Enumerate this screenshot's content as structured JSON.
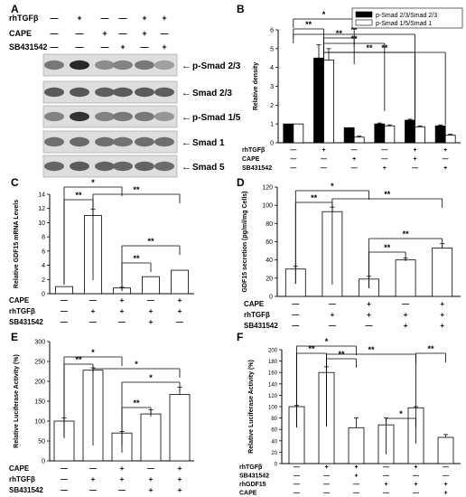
{
  "figure": {
    "panel_letters": [
      "A",
      "B",
      "C",
      "D",
      "E",
      "F"
    ]
  },
  "blot": {
    "conditions": [
      {
        "name": "rhTGFβ",
        "marks": [
          "—",
          "+",
          "—",
          "—",
          "+",
          "+"
        ]
      },
      {
        "name": "CAPE",
        "marks": [
          "—",
          "—",
          "+",
          "—",
          "+",
          "—"
        ]
      },
      {
        "name": "SB431542",
        "marks": [
          "—",
          "—",
          "—",
          "+",
          "—",
          "+"
        ]
      }
    ],
    "bands": [
      "p-Smad 2/3",
      "Smad 2/3",
      "p-Smad 1/5",
      "Smad 1",
      "Smad 5"
    ],
    "arrow": "←",
    "intensity": [
      [
        0.55,
        0.95,
        0.45,
        0.5,
        0.55,
        0.35
      ],
      [
        0.7,
        0.72,
        0.68,
        0.7,
        0.7,
        0.68
      ],
      [
        0.5,
        0.9,
        0.5,
        0.55,
        0.55,
        0.4
      ],
      [
        0.6,
        0.62,
        0.6,
        0.58,
        0.6,
        0.6
      ],
      [
        0.65,
        0.7,
        0.66,
        0.64,
        0.66,
        0.62
      ]
    ]
  },
  "chart_data": [
    {
      "panel": "B",
      "type": "bar",
      "ylabel": "Relative density",
      "ylim": [
        0,
        6
      ],
      "yticks": [
        "0",
        "1",
        "2",
        "3",
        "4",
        "5",
        "6"
      ],
      "series": [
        {
          "name": "p-Smad 2/3/Smad 2/3",
          "color": "#000000",
          "values": [
            1.0,
            4.5,
            0.8,
            1.0,
            1.2,
            0.9
          ]
        },
        {
          "name": "p-Smad 1/5/Smad 1",
          "color": "#ffffff",
          "values": [
            1.0,
            4.4,
            0.3,
            0.9,
            0.85,
            0.4
          ]
        }
      ],
      "errors": [
        [
          0,
          0.7,
          0,
          0.05,
          0.05,
          0.05
        ],
        [
          0,
          0.6,
          0.05,
          0.05,
          0.05,
          0.05
        ]
      ],
      "conditions": [
        {
          "name": "rhTGFβ",
          "marks": [
            "—",
            "+",
            "—",
            "—",
            "+",
            "+"
          ]
        },
        {
          "name": "CAPE",
          "marks": [
            "—",
            "—",
            "+",
            "—",
            "+",
            "—"
          ]
        },
        {
          "name": "SB431542",
          "marks": [
            "—",
            "—",
            "—",
            "+",
            "—",
            "+"
          ]
        }
      ],
      "annotations": [
        "*",
        "**",
        "**",
        "**",
        "**",
        "**",
        "**"
      ]
    },
    {
      "panel": "C",
      "type": "bar",
      "ylabel": "Relative GDF15 mRNA Levels",
      "ylim": [
        0,
        14
      ],
      "yticks": [
        "0",
        "2",
        "4",
        "6",
        "8",
        "10",
        "12",
        "14"
      ],
      "values": [
        1.0,
        11.0,
        0.8,
        2.4,
        3.3
      ],
      "errors": [
        0,
        0.9,
        0.1,
        0,
        0
      ],
      "conditions": [
        {
          "name": "CAPE",
          "marks": [
            "—",
            "—",
            "+",
            "—",
            "+"
          ]
        },
        {
          "name": "rhTGFβ",
          "marks": [
            "—",
            "+",
            "+",
            "+",
            "+"
          ]
        },
        {
          "name": "SB431542",
          "marks": [
            "—",
            "—",
            "—",
            "+",
            "—"
          ]
        }
      ],
      "annotations": [
        "*",
        "**",
        "**",
        "**",
        "**"
      ]
    },
    {
      "panel": "D",
      "type": "bar",
      "ylabel": "GDF15 secretion (pg/ml/mg Cells)",
      "ylim": [
        0,
        120
      ],
      "yticks": [
        "0",
        "20",
        "40",
        "60",
        "80",
        "100",
        "120"
      ],
      "values": [
        30,
        93,
        19,
        40,
        53
      ],
      "errors": [
        3,
        5,
        3,
        2,
        5
      ],
      "conditions": [
        {
          "name": "CAPE",
          "marks": [
            "—",
            "—",
            "+",
            "—",
            "+"
          ]
        },
        {
          "name": "rhTGFβ",
          "marks": [
            "—",
            "+",
            "+",
            "+",
            "+"
          ]
        },
        {
          "name": "SB431542",
          "marks": [
            "—",
            "—",
            "—",
            "+",
            "+"
          ]
        }
      ],
      "annotations": [
        "*",
        "**",
        "**",
        "**",
        "**"
      ]
    },
    {
      "panel": "E",
      "type": "bar",
      "ylabel": "Relative Luciferase Activity (%)",
      "ylim": [
        0,
        300
      ],
      "yticks": [
        "0",
        "50",
        "100",
        "150",
        "200",
        "250",
        "300"
      ],
      "values": [
        100,
        228,
        70,
        118,
        167
      ],
      "errors": [
        8,
        6,
        4,
        10,
        18
      ],
      "conditions": [
        {
          "name": "CAPE",
          "marks": [
            "—",
            "—",
            "+",
            "—",
            "+"
          ]
        },
        {
          "name": "rhTGFβ",
          "marks": [
            "—",
            "+",
            "+",
            "+",
            "+"
          ]
        },
        {
          "name": "SB431542",
          "marks": [
            "—",
            "—",
            "—",
            "+",
            "+"
          ]
        }
      ],
      "annotations": [
        "*",
        "**",
        "*",
        "**",
        "*"
      ]
    },
    {
      "panel": "F",
      "type": "bar",
      "ylabel": "Relative Luciferase Activity (%)",
      "ylim": [
        0,
        200
      ],
      "yticks": [
        "0",
        "20",
        "40",
        "60",
        "80",
        "100",
        "120",
        "140",
        "160",
        "180",
        "200"
      ],
      "values": [
        100,
        160,
        63,
        68,
        98,
        46
      ],
      "errors": [
        2,
        10,
        17,
        12,
        2,
        5
      ],
      "conditions": [
        {
          "name": "rhTGFβ",
          "marks": [
            "—",
            "+",
            "+",
            "—",
            "+",
            "—"
          ]
        },
        {
          "name": "SB431542",
          "marks": [
            "—",
            "—",
            "+",
            "—",
            "—",
            "—"
          ]
        },
        {
          "name": "rhGDF15",
          "marks": [
            "—",
            "—",
            "—",
            "+",
            "+",
            "+"
          ]
        },
        {
          "name": "CAPE",
          "marks": [
            "—",
            "—",
            "—",
            "—",
            "—",
            "+"
          ]
        }
      ],
      "annotations": [
        "*",
        "**",
        "**",
        "**",
        "*",
        "**"
      ]
    }
  ]
}
